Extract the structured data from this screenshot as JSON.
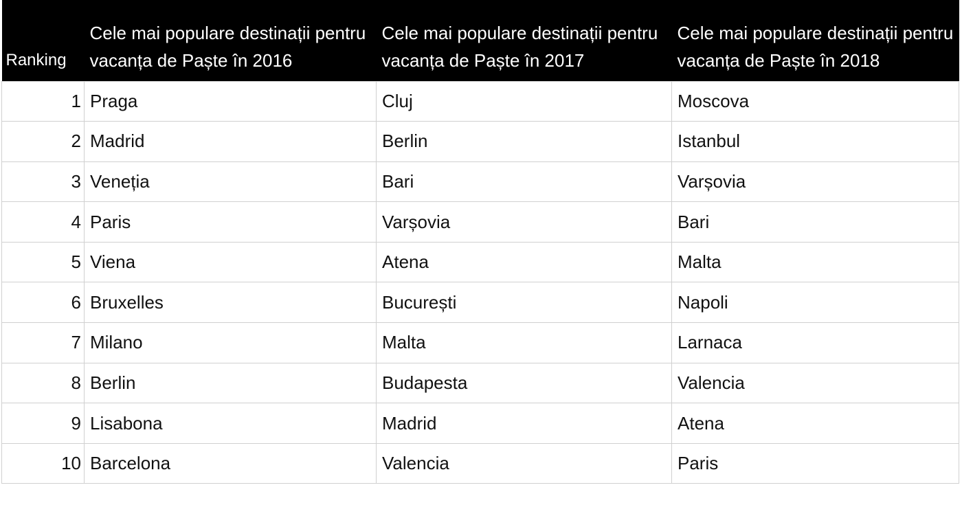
{
  "table": {
    "headers": [
      "Ranking",
      "Cele mai populare destinații pentru vacanța de Paște în 2016",
      "Cele mai populare destinații pentru vacanța de Paște în 2017",
      "Cele mai populare destinații pentru vacanța de Paște în 2018"
    ],
    "rows": [
      [
        1,
        "Praga",
        "Cluj",
        "Moscova"
      ],
      [
        2,
        "Madrid",
        "Berlin",
        "Istanbul"
      ],
      [
        3,
        "Veneția",
        "Bari",
        "Varșovia"
      ],
      [
        4,
        "Paris",
        "Varșovia",
        "Bari"
      ],
      [
        5,
        "Viena",
        "Atena",
        "Malta"
      ],
      [
        6,
        "Bruxelles",
        "București",
        "Napoli"
      ],
      [
        7,
        "Milano",
        "Malta",
        "Larnaca"
      ],
      [
        8,
        "Berlin",
        "Budapesta",
        "Valencia"
      ],
      [
        9,
        "Lisabona",
        "Madrid",
        "Atena"
      ],
      [
        10,
        "Barcelona",
        "Valencia",
        "Paris"
      ]
    ]
  }
}
